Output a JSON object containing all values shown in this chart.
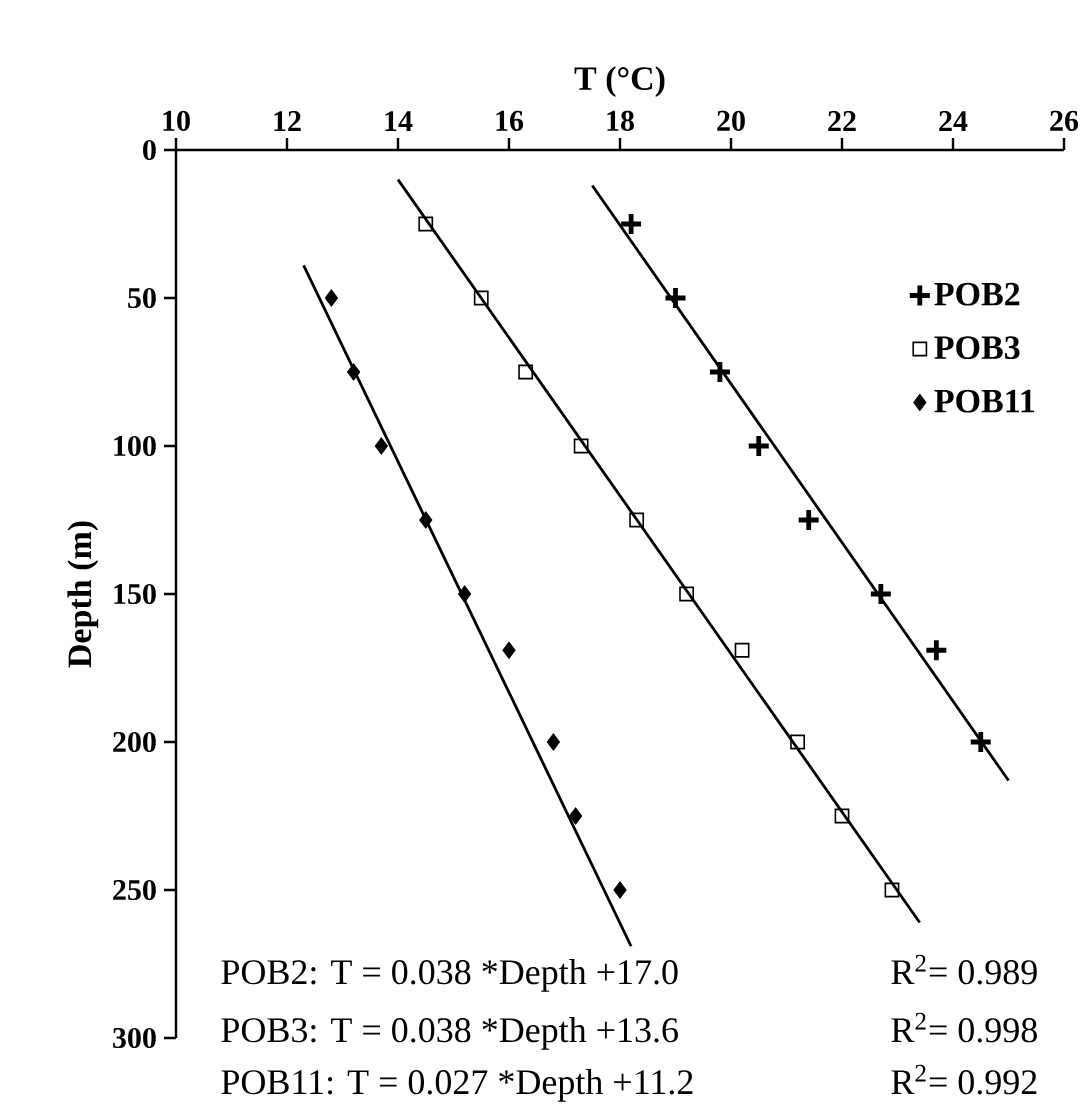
{
  "chart_data": {
    "type": "scatter",
    "xlabel": "T (°C)",
    "ylabel": "Depth (m)",
    "xlim": [
      10,
      26
    ],
    "xticks": [
      10,
      12,
      14,
      16,
      18,
      20,
      22,
      24,
      26
    ],
    "ylim": [
      300,
      0
    ],
    "yticks": [
      0,
      50,
      100,
      150,
      200,
      250,
      300
    ],
    "legend": "top right",
    "grid": false,
    "series": [
      {
        "name": "POB2",
        "color": "#000000",
        "marker": "cross",
        "x": [
          18.2,
          19.0,
          19.8,
          20.5,
          21.4,
          22.7,
          23.7,
          24.5
        ],
        "values": [
          25,
          50,
          75,
          100,
          125,
          150,
          169,
          200
        ]
      },
      {
        "name": "POB3",
        "color": "#000000",
        "marker": "square",
        "x": [
          14.5,
          15.5,
          16.3,
          17.3,
          18.3,
          19.2,
          20.2,
          21.2,
          22.0,
          22.9
        ],
        "values": [
          25,
          50,
          75,
          100,
          125,
          150,
          169,
          200,
          225,
          250
        ]
      },
      {
        "name": "POB11",
        "color": "#000000",
        "marker": "diamond",
        "x": [
          12.8,
          13.2,
          13.7,
          14.5,
          15.2,
          16.0,
          16.8,
          17.2,
          18.0
        ],
        "values": [
          50,
          75,
          100,
          125,
          150,
          169,
          200,
          225,
          250
        ]
      },
      {
        "type": "line",
        "color": "#000000",
        "marker": "none",
        "x": [
          17.5,
          25.0
        ],
        "values": [
          12,
          213
        ]
      },
      {
        "type": "line",
        "color": "#000000",
        "marker": "none",
        "x": [
          14.0,
          23.4
        ],
        "values": [
          10,
          261
        ]
      },
      {
        "type": "line",
        "color": "#000000",
        "marker": "none",
        "x": [
          12.3,
          18.2
        ],
        "values": [
          39,
          269
        ]
      }
    ],
    "annotations": [
      "POB2:   T = 0.038 *Depth +17.0",
      "R$^{2}$= 0.989",
      "POB3:   T = 0.038 *Depth +13.6",
      "R$^{2}$= 0.998",
      "POB11: T = 0.027 *Depth +11.2",
      "R$^{2}$= 0.992"
    ]
  }
}
